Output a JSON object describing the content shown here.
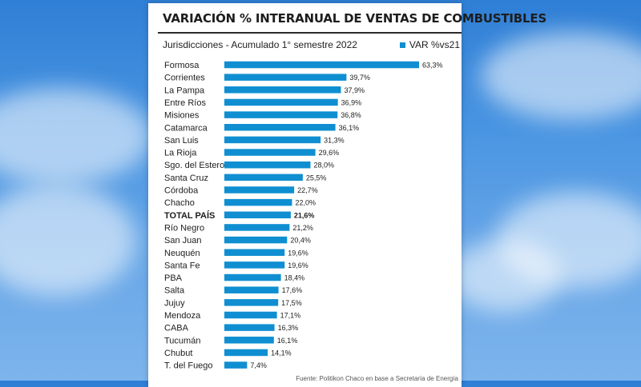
{
  "chart_data": {
    "type": "bar",
    "orientation": "horizontal",
    "title": "VARIACIÓN % INTERANUAL DE VENTAS DE COMBUSTIBLES",
    "subtitle": "Jurisdicciones - Acumulado 1° semestre 2022",
    "legend": "VAR %vs21",
    "legend_position": "top-right",
    "bar_color": "#0f8fd1",
    "highlight_category": "TOTAL PAÍS",
    "categories": [
      "Formosa",
      "Corrientes",
      "La Pampa",
      "Entre Ríos",
      "Misiones",
      "Catamarca",
      "San Luis",
      "La Rioja",
      "Sgo. del Estero",
      "Santa Cruz",
      "Córdoba",
      "Chacho",
      "TOTAL PAÍS",
      "Río Negro",
      "San Juan",
      "Neuquén",
      "Santa Fe",
      "PBA",
      "Salta",
      "Jujuy",
      "Mendoza",
      "CABA",
      "Tucumán",
      "Chubut",
      "T. del Fuego"
    ],
    "values": [
      63.3,
      39.7,
      37.9,
      36.9,
      36.8,
      36.1,
      31.3,
      29.6,
      28.0,
      25.5,
      22.7,
      22.0,
      21.6,
      21.2,
      20.4,
      19.6,
      19.6,
      18.4,
      17.6,
      17.5,
      17.1,
      16.3,
      16.1,
      14.1,
      7.4
    ],
    "value_labels": [
      "63,3%",
      "39,7%",
      "37,9%",
      "36,9%",
      "36,8%",
      "36,1%",
      "31,3%",
      "29,6%",
      "28,0%",
      "25,5%",
      "22,7%",
      "22,0%",
      "21,6%",
      "21,2%",
      "20,4%",
      "19,6%",
      "19,6%",
      "18,4%",
      "17,6%",
      "17,5%",
      "17,1%",
      "16,3%",
      "16,1%",
      "14,1%",
      "7,4%"
    ],
    "grid": false
  },
  "source": "Fuente: Politikon Chaco en base a Secretaría de Energía"
}
